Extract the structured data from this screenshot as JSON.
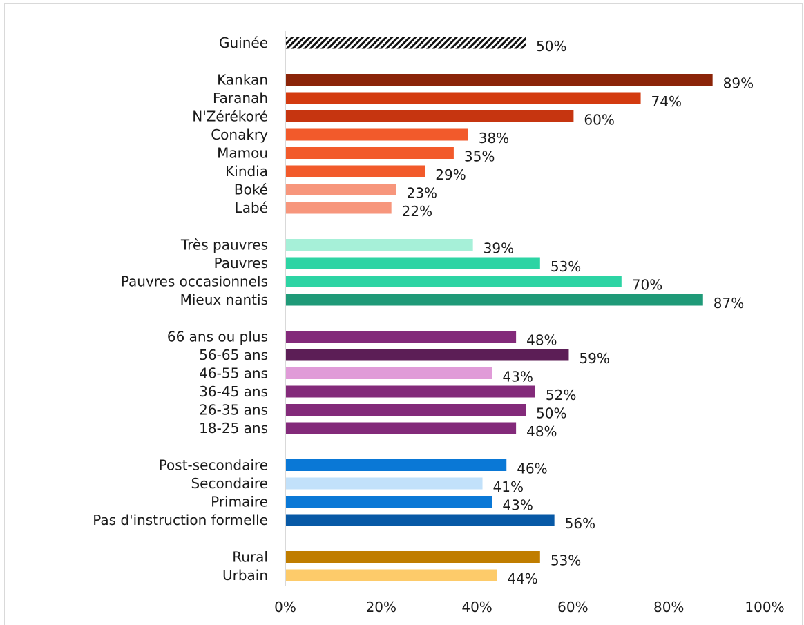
{
  "chart_data": {
    "type": "bar",
    "orientation": "horizontal",
    "xlim": [
      0,
      100
    ],
    "x_ticks": [
      "0%",
      "20%",
      "40%",
      "60%",
      "80%",
      "100%"
    ],
    "grid": false,
    "categories": [
      "Guinée",
      "Kankan",
      "Faranah",
      "N'Zérékoré",
      "Conakry",
      "Mamou",
      "Kindia",
      "Boké",
      "Labé",
      "Très pauvres",
      "Pauvres",
      "Pauvres occasionnels",
      "Mieux nantis",
      "66 ans ou plus",
      "56-65 ans",
      "46-55 ans",
      "36-45 ans",
      "26-35 ans",
      "18-25 ans",
      "Post-secondaire",
      "Secondaire",
      "Primaire",
      "Pas d'instruction formelle",
      "Rural",
      "Urbain"
    ],
    "values": [
      50,
      89,
      74,
      60,
      38,
      35,
      29,
      23,
      22,
      39,
      53,
      70,
      87,
      48,
      59,
      43,
      52,
      50,
      48,
      46,
      41,
      43,
      56,
      53,
      44
    ],
    "value_labels": [
      "50%",
      "89%",
      "74%",
      "60%",
      "38%",
      "35%",
      "29%",
      "23%",
      "22%",
      "39%",
      "53%",
      "70%",
      "87%",
      "48%",
      "59%",
      "43%",
      "52%",
      "50%",
      "48%",
      "46%",
      "41%",
      "43%",
      "56%",
      "53%",
      "44%"
    ],
    "colors": [
      "hatched",
      "#8b2408",
      "#d33a0f",
      "#c63510",
      "#f25a2b",
      "#f25a2b",
      "#f25a2b",
      "#f7967c",
      "#f7967c",
      "#a6f0d8",
      "#2dd4a4",
      "#2dd4a4",
      "#1f9a78",
      "#832a7a",
      "#5c1e56",
      "#e09bd8",
      "#832a7a",
      "#832a7a",
      "#832a7a",
      "#0a78d6",
      "#c2e1fa",
      "#0a78d6",
      "#0759a6",
      "#c07d00",
      "#fdcb6a"
    ],
    "groups": [
      {
        "start": 0,
        "count": 1
      },
      {
        "start": 1,
        "count": 8
      },
      {
        "start": 9,
        "count": 4
      },
      {
        "start": 13,
        "count": 6
      },
      {
        "start": 19,
        "count": 4
      },
      {
        "start": 23,
        "count": 2
      }
    ]
  }
}
